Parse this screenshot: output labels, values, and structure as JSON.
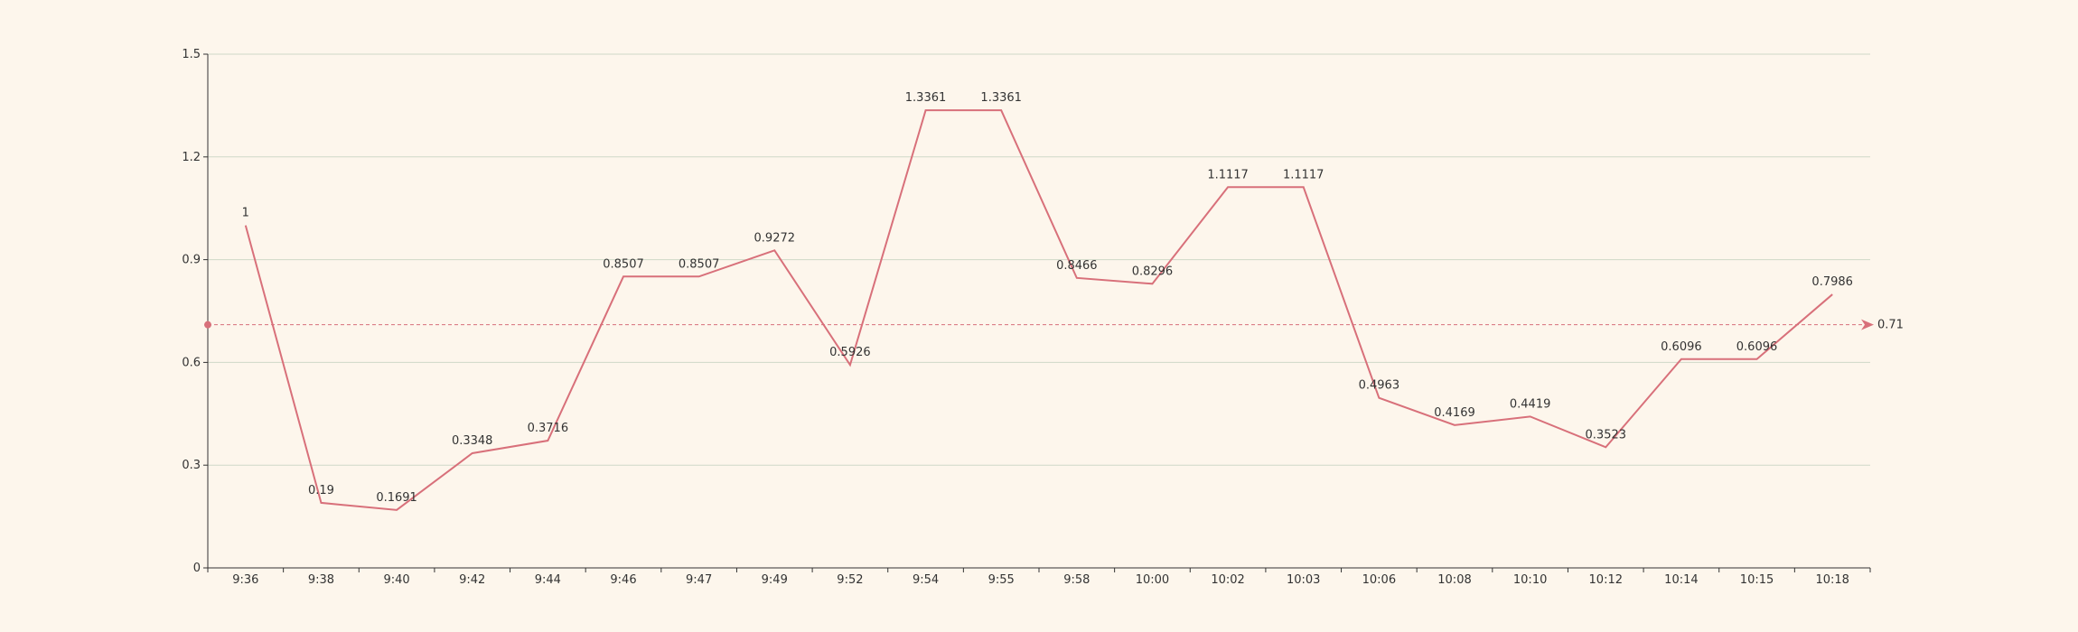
{
  "chart_data": {
    "type": "line",
    "categories": [
      "9:36",
      "9:38",
      "9:40",
      "9:42",
      "9:44",
      "9:46",
      "9:47",
      "9:49",
      "9:52",
      "9:54",
      "9:55",
      "9:58",
      "10:00",
      "10:02",
      "10:03",
      "10:06",
      "10:08",
      "10:10",
      "10:12",
      "10:14",
      "10:15",
      "10:18"
    ],
    "series": [
      {
        "values": [
          1,
          0.19,
          0.1691,
          0.3348,
          0.3716,
          0.8507,
          0.8507,
          0.9272,
          0.5926,
          1.3361,
          1.3361,
          0.8466,
          0.8296,
          1.1117,
          1.1117,
          0.4963,
          0.4169,
          0.4419,
          0.3523,
          0.6096,
          0.6096,
          0.7986
        ],
        "labels": [
          "1",
          "0.19",
          "0.1691",
          "0.3348",
          "0.3716",
          "0.8507",
          "0.8507",
          "0.9272",
          "0.5926",
          "1.3361",
          "1.3361",
          "0.8466",
          "0.8296",
          "1.1117",
          "1.1117",
          "0.4963",
          "0.4169",
          "0.4419",
          "0.3523",
          "0.6096",
          "0.6096",
          "0.7986"
        ]
      }
    ],
    "y_ticks": [
      "0",
      "0.3",
      "0.6",
      "0.9",
      "1.2",
      "1.5"
    ],
    "ylim": [
      0,
      1.5
    ],
    "mark_line": {
      "value": 0.71,
      "label": "0.71"
    },
    "grid": true,
    "colors": {
      "series": "#d8707a",
      "grid": "#cfd8c8",
      "axis": "#333333",
      "background": "#fdf6ec"
    }
  }
}
